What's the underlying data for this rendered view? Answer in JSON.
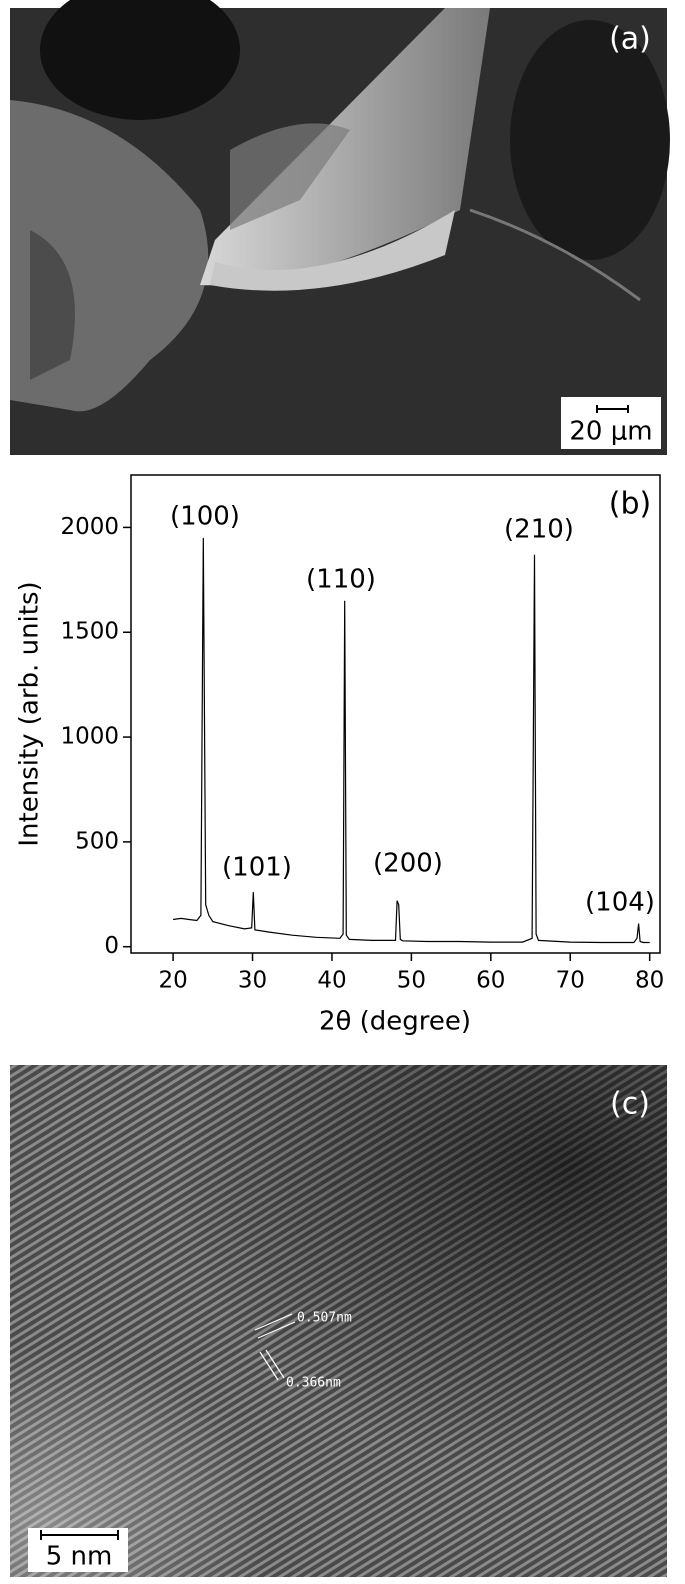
{
  "panel_a": {
    "label": "(a)",
    "scale_bar": "20 μm"
  },
  "chart_data": {
    "type": "line",
    "label": "(b)",
    "x_label": "2θ (degree)",
    "y_label": "Intensity (arb. units)",
    "xlim": [
      14.7,
      81.3
    ],
    "xticks": [
      20,
      30,
      40,
      50,
      60,
      70,
      80
    ],
    "ylim": [
      -30,
      2250
    ],
    "yticks": [
      0,
      500,
      1000,
      1500,
      2000
    ],
    "annotations": [
      "(100)",
      "(101)",
      "(110)",
      "(200)",
      "(210)",
      "(104)"
    ],
    "series": [
      {
        "color": "#000000",
        "x": [
          20,
          21,
          22,
          23,
          23.5,
          23.8,
          24.1,
          24.5,
          25,
          27,
          29,
          29.9,
          30.1,
          30.3,
          32,
          35,
          38,
          41,
          41.4,
          41.6,
          41.8,
          42.2,
          45,
          48,
          48.2,
          48.4,
          48.6,
          48.9,
          52,
          56,
          60,
          64,
          65.2,
          65.5,
          65.7,
          66,
          70,
          74,
          78,
          78.4,
          78.6,
          78.8,
          79.2,
          80
        ],
        "values": [
          130,
          135,
          130,
          125,
          150,
          1950,
          200,
          150,
          120,
          100,
          85,
          90,
          260,
          80,
          70,
          55,
          45,
          40,
          60,
          1650,
          55,
          35,
          30,
          30,
          220,
          200,
          35,
          28,
          25,
          25,
          22,
          22,
          40,
          1870,
          60,
          30,
          22,
          20,
          20,
          40,
          110,
          25,
          20,
          20
        ]
      }
    ]
  },
  "panel_c": {
    "label": "(c)",
    "scale_bar": "5 nm",
    "spacings": [
      "0.507nm",
      "0.366nm"
    ]
  }
}
